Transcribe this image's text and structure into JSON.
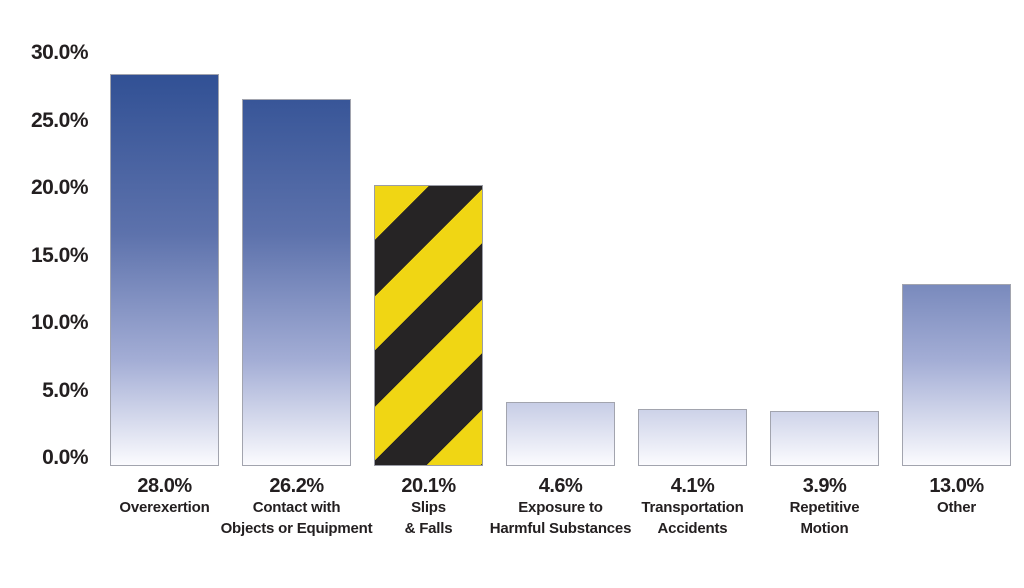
{
  "chart_data": {
    "type": "bar",
    "title": "",
    "xlabel": "",
    "ylabel": "",
    "ylim": [
      0,
      30
    ],
    "grid": false,
    "legend": "none",
    "y_ticks": [
      {
        "value": 0,
        "label": "0.0%"
      },
      {
        "value": 5,
        "label": "5.0%"
      },
      {
        "value": 10,
        "label": "10.0%"
      },
      {
        "value": 15,
        "label": "15.0%"
      },
      {
        "value": 20,
        "label": "20.0%"
      },
      {
        "value": 25,
        "label": "25.0%"
      },
      {
        "value": 30,
        "label": "30.0%"
      }
    ],
    "bars": [
      {
        "value": 28.0,
        "value_label": "28.0%",
        "category_lines": [
          "Overexertion"
        ],
        "style": "gradient"
      },
      {
        "value": 26.2,
        "value_label": "26.2%",
        "category_lines": [
          "Contact with",
          "Objects or Equipment"
        ],
        "style": "gradient"
      },
      {
        "value": 20.1,
        "value_label": "20.1%",
        "category_lines": [
          "Slips",
          "& Falls"
        ],
        "style": "hazard-stripes"
      },
      {
        "value": 4.6,
        "value_label": "4.6%",
        "category_lines": [
          "Exposure to",
          "Harmful Substances"
        ],
        "style": "gradient"
      },
      {
        "value": 4.1,
        "value_label": "4.1%",
        "category_lines": [
          "Transportation",
          "Accidents"
        ],
        "style": "gradient"
      },
      {
        "value": 3.9,
        "value_label": "3.9%",
        "category_lines": [
          "Repetitive",
          "Motion"
        ],
        "style": "gradient"
      },
      {
        "value": 13.0,
        "value_label": "13.0%",
        "category_lines": [
          "Other"
        ],
        "style": "gradient"
      }
    ],
    "colors": {
      "background": "#FFFFFF",
      "text": "#231F20",
      "bar_border": "#A2A4AE",
      "bar_gradient_top": "#294A90",
      "bar_gradient_mid": "#5D72AC",
      "bar_gradient_light": "#A3ADD5",
      "bar_gradient_bottom": "#FBFBFE",
      "hazard_yellow": "#F0D614",
      "hazard_black": "#262425"
    }
  }
}
